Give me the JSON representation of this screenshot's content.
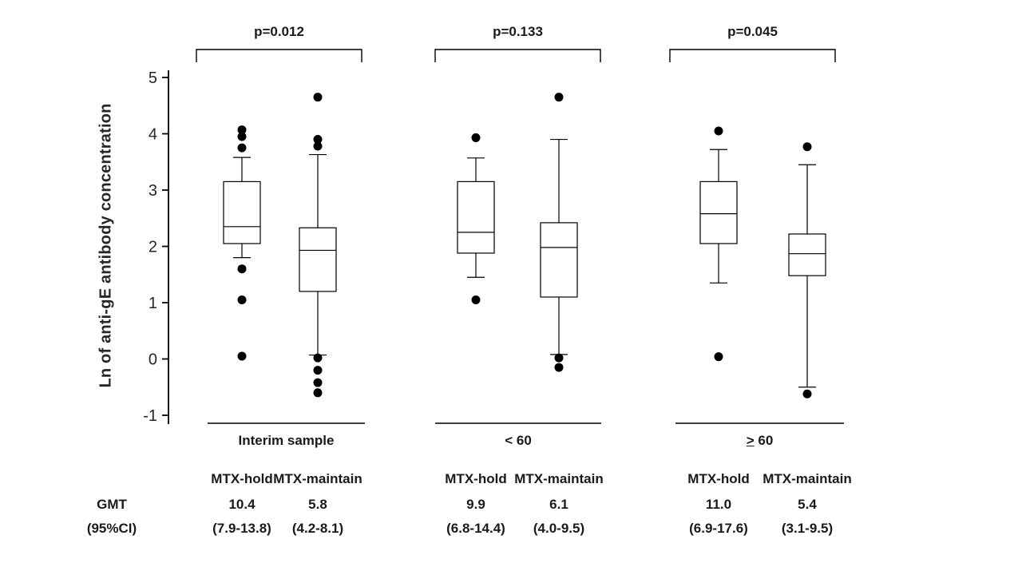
{
  "chart_data": {
    "type": "boxplot",
    "title": "",
    "ylabel": "Ln of anti-gE antibody concentration",
    "ylim": [
      -1,
      5
    ],
    "yticks": [
      -1,
      0,
      1,
      2,
      3,
      4,
      5
    ],
    "grid": false,
    "colors": {
      "line": "#000000",
      "dot": "#000000",
      "box_fill": "#ffffff"
    },
    "row_labels": {
      "gmt": "GMT",
      "ci": "(95%CI)"
    },
    "panels": [
      {
        "label": "Interim sample",
        "underline_first": false,
        "p_value": "p=0.012",
        "groups": [
          {
            "name": "MTX-hold",
            "gmt": "10.4",
            "ci": "(7.9-13.8)",
            "whisker_low": 1.8,
            "q1": 2.05,
            "median": 2.35,
            "q3": 3.15,
            "whisker_high": 3.58,
            "outliers": [
              4.07,
              3.95,
              3.75,
              1.6,
              1.05,
              0.05
            ]
          },
          {
            "name": "MTX-maintain",
            "gmt": "5.8",
            "ci": "(4.2-8.1)",
            "whisker_low": 0.07,
            "q1": 1.2,
            "median": 1.93,
            "q3": 2.33,
            "whisker_high": 3.63,
            "outliers": [
              4.65,
              3.9,
              3.78,
              0.02,
              -0.2,
              -0.42,
              -0.6
            ]
          }
        ]
      },
      {
        "label": "< 60",
        "underline_first": false,
        "p_value": "p=0.133",
        "groups": [
          {
            "name": "MTX-hold",
            "gmt": "9.9",
            "ci": "(6.8-14.4)",
            "whisker_low": 1.45,
            "q1": 1.88,
            "median": 2.25,
            "q3": 3.15,
            "whisker_high": 3.57,
            "outliers": [
              3.93,
              1.05
            ]
          },
          {
            "name": "MTX-maintain",
            "gmt": "6.1",
            "ci": "(4.0-9.5)",
            "whisker_low": 0.08,
            "q1": 1.1,
            "median": 1.98,
            "q3": 2.42,
            "whisker_high": 3.9,
            "outliers": [
              4.65,
              0.02,
              -0.15
            ]
          }
        ]
      },
      {
        "label": "> 60",
        "underline_first": true,
        "p_value": "p=0.045",
        "groups": [
          {
            "name": "MTX-hold",
            "gmt": "11.0",
            "ci": "(6.9-17.6)",
            "whisker_low": 1.35,
            "q1": 2.05,
            "median": 2.58,
            "q3": 3.15,
            "whisker_high": 3.72,
            "outliers": [
              4.05,
              0.04
            ]
          },
          {
            "name": "MTX-maintain",
            "gmt": "5.4",
            "ci": "(3.1-9.5)",
            "whisker_low": -0.5,
            "q1": 1.48,
            "median": 1.87,
            "q3": 2.22,
            "whisker_high": 3.45,
            "outliers": [
              3.77,
              -0.62
            ]
          }
        ]
      }
    ]
  }
}
